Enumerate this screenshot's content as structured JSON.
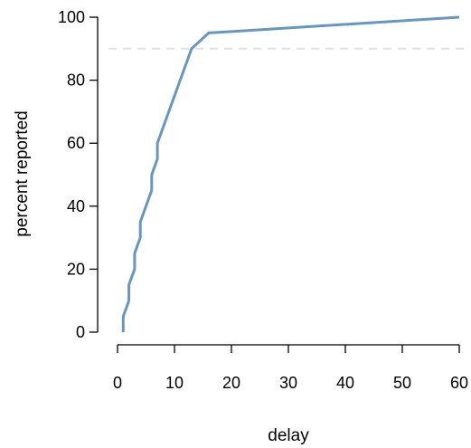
{
  "chart_data": {
    "type": "line",
    "xlabel": "delay",
    "ylabel": "percent reported",
    "xlim": [
      0,
      60
    ],
    "ylim": [
      0,
      100
    ],
    "x_ticks": [
      "0",
      "10",
      "20",
      "30",
      "40",
      "50",
      "60"
    ],
    "y_ticks": [
      "0",
      "20",
      "40",
      "60",
      "80",
      "100"
    ],
    "reference_line": {
      "y": 90,
      "style": "dashed",
      "color": "#e0e0e0"
    },
    "series": [
      {
        "color": "#6a96bb",
        "x": [
          1,
          1,
          2,
          2,
          3,
          3,
          4,
          4,
          5,
          6,
          6,
          7,
          7,
          13,
          16,
          60
        ],
        "y": [
          0,
          5,
          10,
          15,
          20,
          25,
          30,
          35,
          40,
          45,
          50,
          55,
          60,
          90,
          95,
          100
        ]
      }
    ],
    "grid": false,
    "legend": "none"
  }
}
